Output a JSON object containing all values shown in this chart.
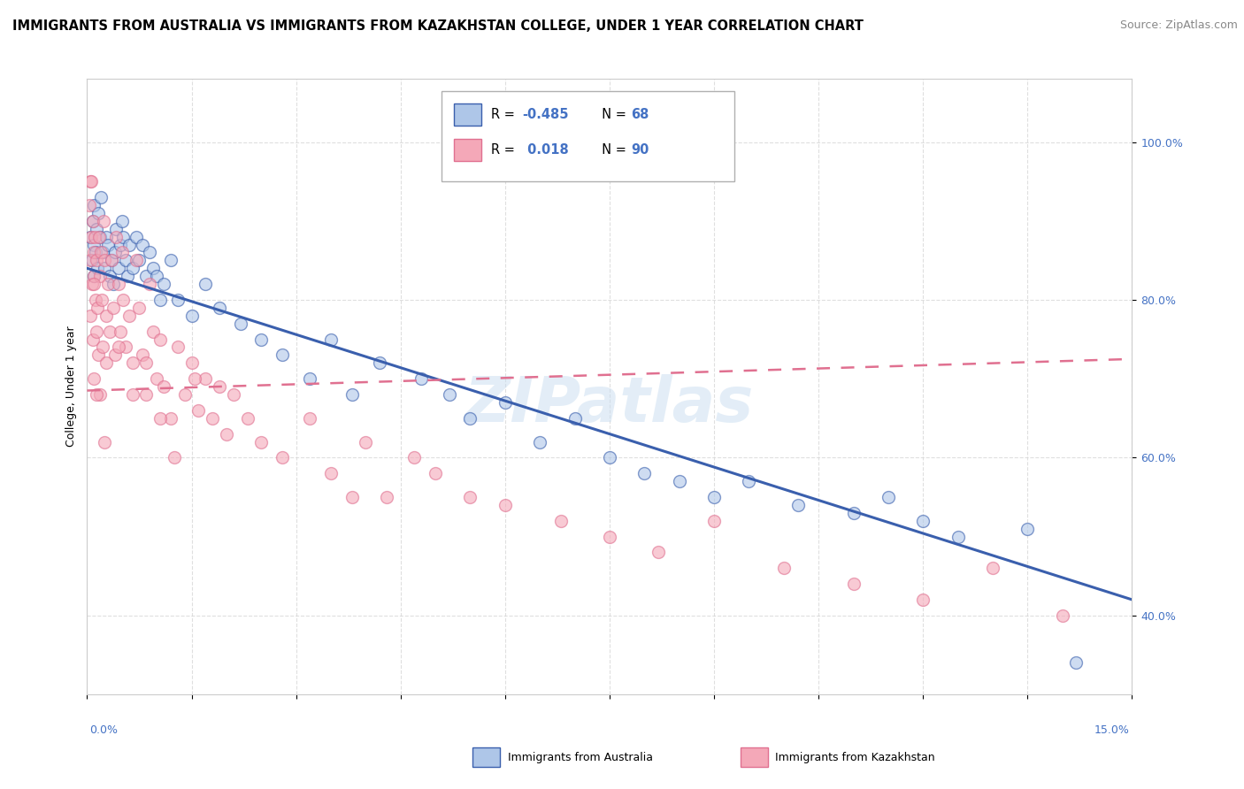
{
  "title": "IMMIGRANTS FROM AUSTRALIA VS IMMIGRANTS FROM KAZAKHSTAN COLLEGE, UNDER 1 YEAR CORRELATION CHART",
  "source": "Source: ZipAtlas.com",
  "ylabel": "College, Under 1 year",
  "xmin": 0.0,
  "xmax": 15.0,
  "ymin": 30.0,
  "ymax": 108.0,
  "watermark": "ZIPatlas",
  "australia_color": "#aec6e8",
  "kazakhstan_color": "#f4a8b8",
  "australia_line_color": "#3a5fad",
  "kazakhstan_line_color": "#e07090",
  "background_color": "#ffffff",
  "grid_color": "#d8d8d8",
  "ytick_color": "#4472c4",
  "xtick_color": "#4472c4",
  "title_fontsize": 10.5,
  "source_fontsize": 9,
  "axis_label_fontsize": 9,
  "tick_label_fontsize": 9,
  "aus_line_x0": 0.0,
  "aus_line_x1": 15.0,
  "aus_line_y0": 84.0,
  "aus_line_y1": 42.0,
  "kaz_line_x0": 0.0,
  "kaz_line_x1": 15.0,
  "kaz_line_y0": 68.5,
  "kaz_line_y1": 72.5,
  "australia_x": [
    0.05,
    0.07,
    0.08,
    0.09,
    0.1,
    0.1,
    0.12,
    0.13,
    0.15,
    0.16,
    0.18,
    0.2,
    0.22,
    0.25,
    0.28,
    0.3,
    0.32,
    0.35,
    0.38,
    0.4,
    0.42,
    0.45,
    0.48,
    0.5,
    0.52,
    0.55,
    0.58,
    0.6,
    0.65,
    0.7,
    0.75,
    0.8,
    0.85,
    0.9,
    0.95,
    1.0,
    1.05,
    1.1,
    1.2,
    1.3,
    1.5,
    1.7,
    1.9,
    2.2,
    2.5,
    2.8,
    3.2,
    3.5,
    3.8,
    4.2,
    4.8,
    5.2,
    5.5,
    6.0,
    6.5,
    7.0,
    7.5,
    8.0,
    8.5,
    9.0,
    9.5,
    10.2,
    11.0,
    11.5,
    12.0,
    12.5,
    13.5,
    14.2
  ],
  "australia_y": [
    88,
    85,
    90,
    92,
    87,
    83,
    86,
    89,
    84,
    91,
    88,
    93,
    86,
    84,
    88,
    87,
    83,
    85,
    82,
    86,
    89,
    84,
    87,
    90,
    88,
    85,
    83,
    87,
    84,
    88,
    85,
    87,
    83,
    86,
    84,
    83,
    80,
    82,
    85,
    80,
    78,
    82,
    79,
    77,
    75,
    73,
    70,
    75,
    68,
    72,
    70,
    68,
    65,
    67,
    62,
    65,
    60,
    58,
    57,
    55,
    57,
    54,
    53,
    55,
    52,
    50,
    51,
    34
  ],
  "kazakhstan_x": [
    0.03,
    0.04,
    0.05,
    0.05,
    0.06,
    0.07,
    0.08,
    0.08,
    0.09,
    0.1,
    0.1,
    0.11,
    0.12,
    0.13,
    0.14,
    0.15,
    0.16,
    0.17,
    0.18,
    0.19,
    0.2,
    0.21,
    0.22,
    0.23,
    0.25,
    0.27,
    0.28,
    0.3,
    0.32,
    0.35,
    0.38,
    0.4,
    0.42,
    0.45,
    0.48,
    0.5,
    0.52,
    0.55,
    0.6,
    0.65,
    0.7,
    0.75,
    0.8,
    0.85,
    0.9,
    0.95,
    1.0,
    1.05,
    1.1,
    1.2,
    1.3,
    1.4,
    1.5,
    1.6,
    1.7,
    1.8,
    1.9,
    2.0,
    2.1,
    2.3,
    2.5,
    2.8,
    3.2,
    3.5,
    3.8,
    4.0,
    4.3,
    4.7,
    5.0,
    5.5,
    6.0,
    6.8,
    7.5,
    8.2,
    9.0,
    10.0,
    11.0,
    12.0,
    13.0,
    14.0,
    0.06,
    0.09,
    0.13,
    0.25,
    0.45,
    0.65,
    0.85,
    1.05,
    1.25,
    1.55
  ],
  "kazakhstan_y": [
    92,
    85,
    95,
    78,
    88,
    82,
    90,
    75,
    86,
    83,
    70,
    88,
    80,
    76,
    85,
    79,
    73,
    88,
    83,
    68,
    86,
    80,
    74,
    90,
    85,
    78,
    72,
    82,
    76,
    85,
    79,
    73,
    88,
    82,
    76,
    86,
    80,
    74,
    78,
    72,
    85,
    79,
    73,
    68,
    82,
    76,
    70,
    75,
    69,
    65,
    74,
    68,
    72,
    66,
    70,
    65,
    69,
    63,
    68,
    65,
    62,
    60,
    65,
    58,
    55,
    62,
    55,
    60,
    58,
    55,
    54,
    52,
    50,
    48,
    52,
    46,
    44,
    42,
    46,
    40,
    95,
    82,
    68,
    62,
    74,
    68,
    72,
    65,
    60,
    70
  ]
}
